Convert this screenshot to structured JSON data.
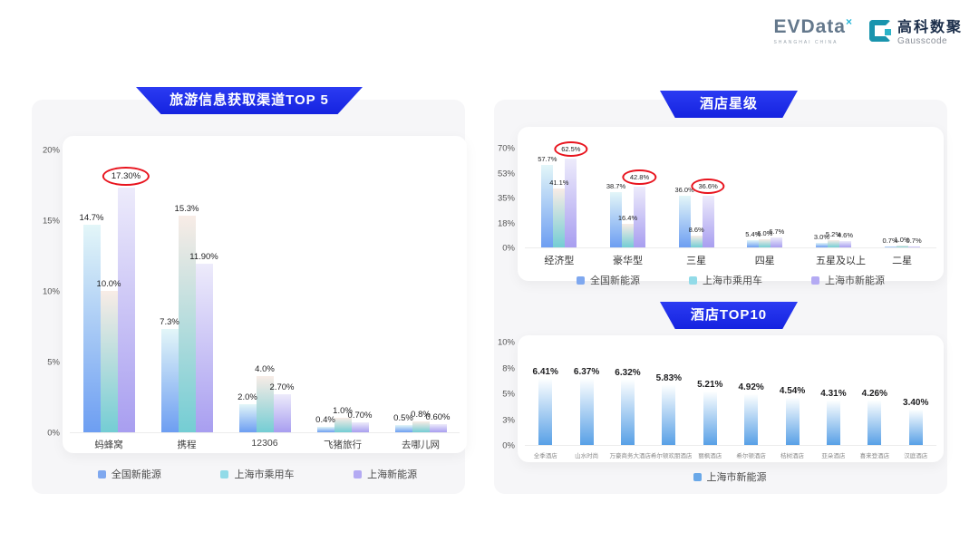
{
  "logo": {
    "evdata_text": "EVData",
    "evdata_mark": "×",
    "evdata_tagline": "SHANGHAI CHINA",
    "gausscode_cn": "高科数聚",
    "gausscode_en": "Gausscode"
  },
  "colors": {
    "banner_blue": "#1d2cec",
    "highlight_red": "#e8141e",
    "panel_gray": "#f6f6f8",
    "series_national": [
      "#e3f6f8",
      "#6d9ef2"
    ],
    "series_shanghai_pv": [
      "#f8ece6",
      "#74cdd4"
    ],
    "series_shanghai_nev": [
      "#edebfb",
      "#a89ef0"
    ],
    "series_top10": [
      "#fdffff",
      "#58a0e6"
    ],
    "legend_national": "#7fa8ef",
    "legend_shanghai_pv": "#92dbe8",
    "legend_shanghai_nev": "#b4aaf3",
    "legend_top10": "#6aa8e8"
  },
  "chart_data": [
    {
      "type": "bar",
      "title": "旅游信息获取渠道TOP 5",
      "categories": [
        "蚂蜂窝",
        "携程",
        "12306",
        "飞猪旅行",
        "去哪儿网"
      ],
      "ylim": [
        0,
        20
      ],
      "grid": false,
      "legend_position": "bottom",
      "yticks": [
        {
          "label": "20%",
          "v": 20
        },
        {
          "label": "15%",
          "v": 15
        },
        {
          "label": "10%",
          "v": 10
        },
        {
          "label": "5%",
          "v": 5
        },
        {
          "label": "0%",
          "v": 0
        }
      ],
      "series": [
        {
          "name": "全国新能源",
          "values": [
            14.7,
            7.3,
            2.0,
            0.4,
            0.5
          ],
          "labels": [
            "14.7%",
            "7.3%",
            "2.0%",
            "0.4%",
            "0.5%"
          ],
          "color_key": "series_national",
          "legend_key": "legend_national",
          "circled": []
        },
        {
          "name": "上海市乘用车",
          "values": [
            10.0,
            15.3,
            4.0,
            1.0,
            0.8
          ],
          "labels": [
            "10.0%",
            "15.3%",
            "4.0%",
            "1.0%",
            "0.8%"
          ],
          "color_key": "series_shanghai_pv",
          "legend_key": "legend_shanghai_pv",
          "circled": []
        },
        {
          "name": "上海新能源",
          "values": [
            17.3,
            11.9,
            2.7,
            0.7,
            0.6
          ],
          "labels": [
            "17.30%",
            "11.90%",
            "2.70%",
            "0.70%",
            "0.60%"
          ],
          "color_key": "series_shanghai_nev",
          "legend_key": "legend_shanghai_nev",
          "circled": [
            0
          ]
        }
      ]
    },
    {
      "type": "bar",
      "title": "酒店星级",
      "categories": [
        "经济型",
        "豪华型",
        "三星",
        "四星",
        "五星及以上",
        "二星"
      ],
      "ylim": [
        0,
        70
      ],
      "grid": false,
      "legend_position": "bottom",
      "yticks": [
        {
          "label": "70%",
          "v": 70
        },
        {
          "label": "53%",
          "v": 52.5
        },
        {
          "label": "35%",
          "v": 35
        },
        {
          "label": "18%",
          "v": 17.5
        },
        {
          "label": "0%",
          "v": 0
        }
      ],
      "series": [
        {
          "name": "全国新能源",
          "values": [
            57.7,
            38.7,
            36.0,
            5.4,
            3.0,
            0.7
          ],
          "labels": [
            "57.7%",
            "38.7%",
            "36.0%",
            "5.4%",
            "3.0%",
            "0.7%"
          ],
          "color_key": "series_national",
          "legend_key": "legend_national",
          "circled": []
        },
        {
          "name": "上海市乘用车",
          "values": [
            41.1,
            16.4,
            8.6,
            6.0,
            5.2,
            1.0
          ],
          "labels": [
            "41.1%",
            "16.4%",
            "8.6%",
            "6.0%",
            "5.2%",
            "1.0%"
          ],
          "color_key": "series_shanghai_pv",
          "legend_key": "legend_shanghai_pv",
          "circled": []
        },
        {
          "name": "上海市新能源",
          "values": [
            62.5,
            42.8,
            36.6,
            6.7,
            4.6,
            0.7
          ],
          "labels": [
            "62.5%",
            "42.8%",
            "36.6%",
            "6.7%",
            "4.6%",
            "0.7%"
          ],
          "color_key": "series_shanghai_nev",
          "legend_key": "legend_shanghai_nev",
          "circled": [
            0,
            1,
            2
          ]
        }
      ]
    },
    {
      "type": "bar",
      "title": "酒店TOP10",
      "categories": [
        "全季酒店",
        "山水时尚",
        "万豪商务大酒店",
        "希尔顿欢朋酒店",
        "丽枫酒店",
        "希尔顿酒店",
        "桔树酒店",
        "亚朵酒店",
        "喜来登酒店",
        "汉庭酒店"
      ],
      "ylim": [
        0,
        10
      ],
      "grid": false,
      "legend_position": "bottom",
      "yticks": [
        {
          "label": "10%",
          "v": 10
        },
        {
          "label": "8%",
          "v": 7.5
        },
        {
          "label": "5%",
          "v": 5
        },
        {
          "label": "3%",
          "v": 2.5
        },
        {
          "label": "0%",
          "v": 0
        }
      ],
      "series": [
        {
          "name": "上海市新能源",
          "values": [
            6.41,
            6.37,
            6.32,
            5.83,
            5.21,
            4.92,
            4.54,
            4.31,
            4.26,
            3.4
          ],
          "labels": [
            "6.41%",
            "6.37%",
            "6.32%",
            "5.83%",
            "5.21%",
            "4.92%",
            "4.54%",
            "4.31%",
            "4.26%",
            "3.40%"
          ],
          "color_key": "series_top10",
          "legend_key": "legend_top10",
          "circled": []
        }
      ]
    }
  ]
}
